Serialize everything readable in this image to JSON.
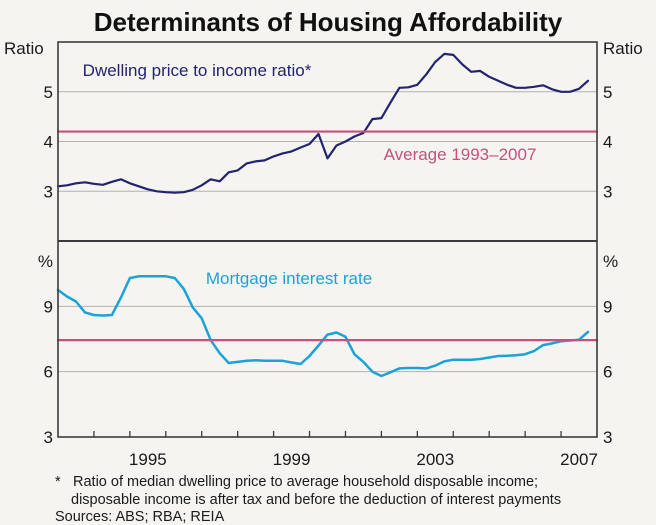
{
  "title": "Determinants of Housing Affordability",
  "footnotes": {
    "asterisk": "*",
    "line1": "Ratio of median dwelling price to average household disposable income;",
    "line2": "disposable income is after tax and before the deduction of interest payments",
    "sources": "Sources: ABS; RBA; REIA"
  },
  "colors": {
    "background": "#f5f4f1",
    "text": "#1a1a1a",
    "gridline": "#b2b2af",
    "frame": "#3b3b3b",
    "dwelling_line": "#232370",
    "average_line": "#c5517f",
    "mortgage_line": "#1ca2d9"
  },
  "chart_data": [
    {
      "type": "line",
      "position": "top_panel",
      "unit_left": "Ratio",
      "unit_right": "Ratio",
      "ylim": [
        2,
        6
      ],
      "yticks": [
        3,
        4,
        5
      ],
      "xlim": [
        1993,
        2008
      ],
      "grid": true,
      "series": [
        {
          "name": "Dwelling price to income ratio*",
          "kind": "line",
          "color": "#232370",
          "x_start": 1993.0,
          "x_step": 0.25,
          "values": [
            3.1,
            3.12,
            3.16,
            3.18,
            3.15,
            3.13,
            3.19,
            3.24,
            3.16,
            3.1,
            3.04,
            3.0,
            2.98,
            2.97,
            2.98,
            3.03,
            3.12,
            3.24,
            3.2,
            3.38,
            3.42,
            3.56,
            3.6,
            3.62,
            3.7,
            3.76,
            3.8,
            3.88,
            3.95,
            4.15,
            3.66,
            3.92,
            4.0,
            4.1,
            4.17,
            4.45,
            4.47,
            4.78,
            5.08,
            5.09,
            5.14,
            5.35,
            5.6,
            5.76,
            5.74,
            5.55,
            5.4,
            5.42,
            5.3,
            5.22,
            5.14,
            5.08,
            5.08,
            5.1,
            5.13,
            5.05,
            5.0,
            5.0,
            5.06,
            5.22
          ]
        },
        {
          "name": "Average 1993–2007",
          "kind": "hline",
          "color": "#c5517f",
          "value": 4.2
        }
      ]
    },
    {
      "type": "line",
      "position": "bottom_panel",
      "unit_left": "%",
      "unit_right": "%",
      "ylim": [
        3,
        12
      ],
      "yticks": [
        3,
        6,
        9
      ],
      "xlim": [
        1993,
        2008
      ],
      "grid": true,
      "xtick_years": [
        1994,
        1995,
        1996,
        1997,
        1998,
        1999,
        2000,
        2001,
        2002,
        2003,
        2004,
        2005,
        2006,
        2007
      ],
      "xtick_labels": [
        "1995",
        "1999",
        "2003",
        "2007"
      ],
      "series": [
        {
          "name": "Mortgage interest rate",
          "kind": "line",
          "color": "#1ca2d9",
          "x_start": 1993.0,
          "x_step": 0.25,
          "values": [
            9.75,
            9.45,
            9.22,
            8.72,
            8.6,
            8.58,
            8.6,
            9.4,
            10.3,
            10.38,
            10.38,
            10.38,
            10.38,
            10.3,
            9.8,
            8.95,
            8.45,
            7.45,
            6.85,
            6.4,
            6.45,
            6.5,
            6.52,
            6.5,
            6.5,
            6.5,
            6.42,
            6.35,
            6.72,
            7.2,
            7.7,
            7.8,
            7.6,
            6.8,
            6.45,
            6.0,
            5.8,
            5.97,
            6.15,
            6.17,
            6.17,
            6.15,
            6.28,
            6.47,
            6.55,
            6.55,
            6.55,
            6.58,
            6.65,
            6.72,
            6.73,
            6.75,
            6.8,
            6.95,
            7.22,
            7.3,
            7.4,
            7.43,
            7.47,
            7.82
          ]
        },
        {
          "name": "Average 1993–2007",
          "kind": "hline",
          "color": "#c5517f",
          "value": 7.45
        }
      ]
    }
  ]
}
